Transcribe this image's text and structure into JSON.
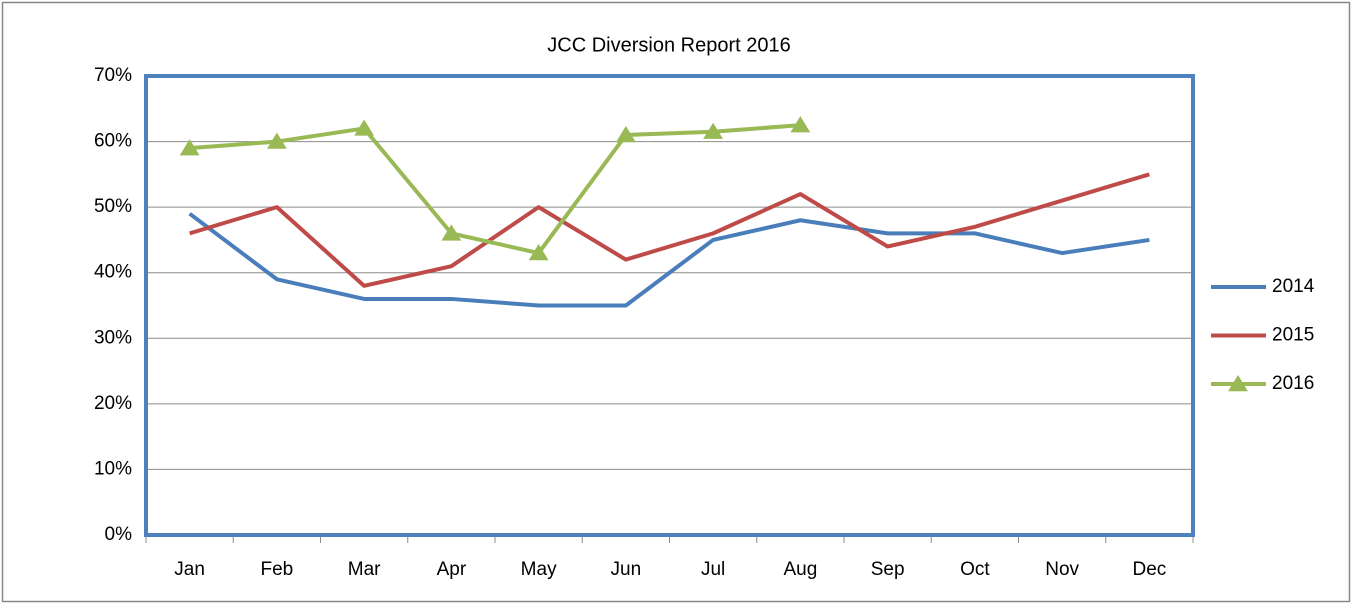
{
  "chart_data": {
    "type": "line",
    "title": "JCC Diversion Report 2016",
    "categories": [
      "Jan",
      "Feb",
      "Mar",
      "Apr",
      "May",
      "Jun",
      "Jul",
      "Aug",
      "Sep",
      "Oct",
      "Nov",
      "Dec"
    ],
    "series": [
      {
        "name": "2014",
        "color": "#4a7ebb",
        "marker": "none",
        "values": [
          49,
          39,
          36,
          36,
          35,
          35,
          45,
          48,
          46,
          46,
          43,
          45
        ]
      },
      {
        "name": "2015",
        "color": "#be4b48",
        "marker": "none",
        "values": [
          46,
          50,
          38,
          41,
          50,
          42,
          46,
          52,
          44,
          47,
          51,
          55
        ]
      },
      {
        "name": "2016",
        "color": "#98b954",
        "marker": "triangle",
        "values": [
          59,
          60,
          62,
          46,
          43,
          61,
          61.5,
          62.5,
          null,
          null,
          null,
          null
        ]
      }
    ],
    "ylim": [
      0,
      70
    ],
    "yticks": [
      {
        "value": 0,
        "label": "0%"
      },
      {
        "value": 10,
        "label": "10%"
      },
      {
        "value": 20,
        "label": "20%"
      },
      {
        "value": 30,
        "label": "30%"
      },
      {
        "value": 40,
        "label": "40%"
      },
      {
        "value": 50,
        "label": "50%"
      },
      {
        "value": 60,
        "label": "60%"
      },
      {
        "value": 70,
        "label": "70%"
      }
    ],
    "grid": true,
    "legend": "right"
  }
}
